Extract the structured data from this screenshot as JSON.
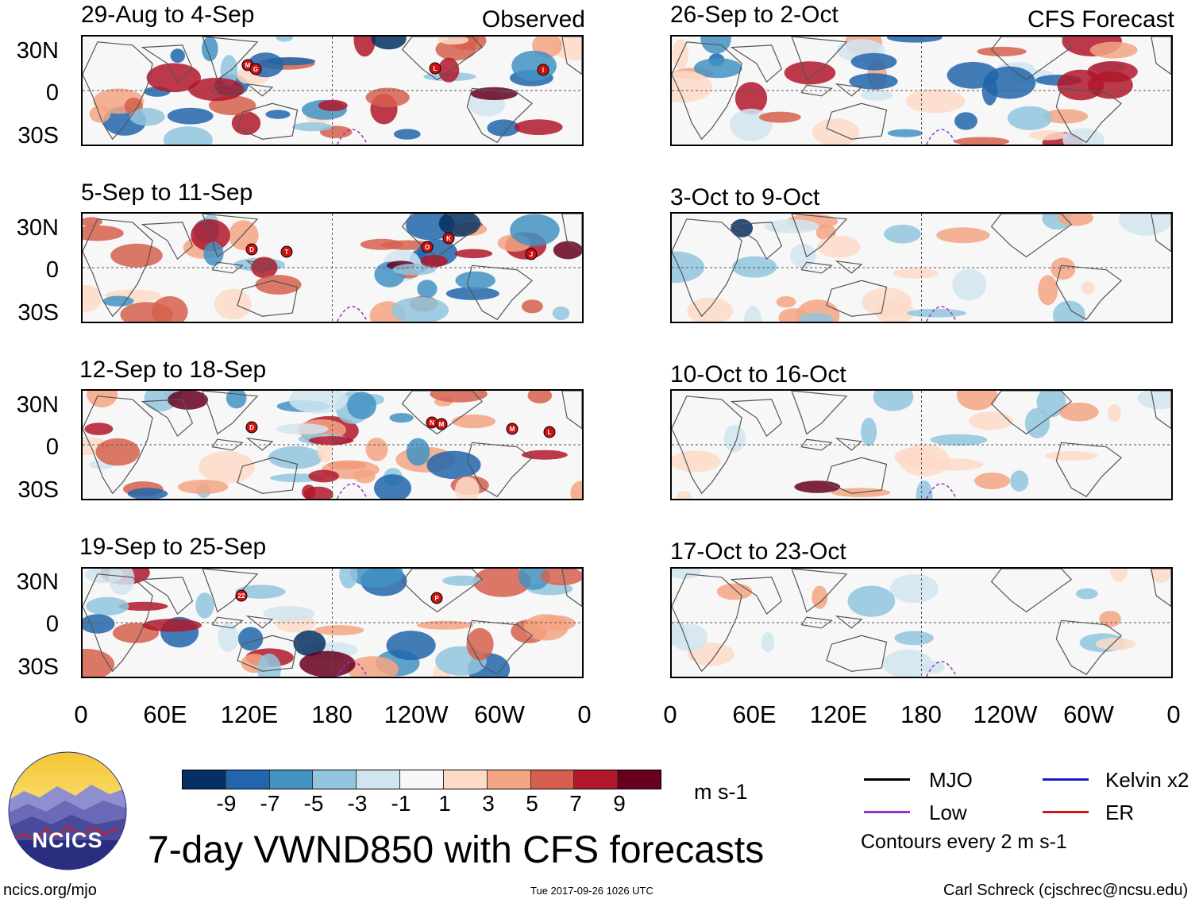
{
  "observed_label": "Observed",
  "forecast_label": "CFS Forecast",
  "panels_observed": [
    {
      "title": "29-Aug to 4-Sep"
    },
    {
      "title": "5-Sep to 11-Sep"
    },
    {
      "title": "12-Sep to 18-Sep"
    },
    {
      "title": "19-Sep to 25-Sep"
    }
  ],
  "panels_forecast": [
    {
      "title": "26-Sep to 2-Oct"
    },
    {
      "title": "3-Oct to 9-Oct"
    },
    {
      "title": "10-Oct to 16-Oct"
    },
    {
      "title": "17-Oct to 23-Oct"
    }
  ],
  "lat_labels": [
    "30N",
    "0",
    "30S"
  ],
  "lon_labels": [
    "0",
    "60E",
    "120E",
    "180",
    "120W",
    "60W",
    "0"
  ],
  "colorbar": {
    "ticks": [
      "-9",
      "-7",
      "-5",
      "-3",
      "-1",
      "1",
      "3",
      "5",
      "7",
      "9"
    ],
    "colors": [
      "#053061",
      "#2166ac",
      "#4393c3",
      "#92c5de",
      "#d1e5f0",
      "#f7f7f7",
      "#fddbc7",
      "#f4a582",
      "#d6604d",
      "#b2182b",
      "#67001f"
    ],
    "unit": "m s-1"
  },
  "legend": {
    "items": [
      {
        "label": "MJO",
        "color": "#000000"
      },
      {
        "label": "Kelvin x2",
        "color": "#1a1acc"
      },
      {
        "label": "Low",
        "color": "#9933cc"
      },
      {
        "label": "ER",
        "color": "#cc1a1a"
      }
    ],
    "contour_note": "Contours every 2 m s-1"
  },
  "logo_text": "NCICS",
  "main_title": "7-day VWND850 with CFS forecasts",
  "footer": {
    "url": "ncics.org/mjo",
    "timestamp": "Tue 2017-09-26 1026 UTC",
    "author": "Carl Schreck (cjschrec@ncsu.edu)"
  },
  "storm_markers": [
    [
      "M",
      "G",
      "L",
      "I"
    ],
    [
      "D",
      "T",
      "O",
      "K",
      "J"
    ],
    [
      "D",
      "N",
      "M",
      "M",
      "L"
    ],
    [
      "22",
      "P"
    ]
  ]
}
